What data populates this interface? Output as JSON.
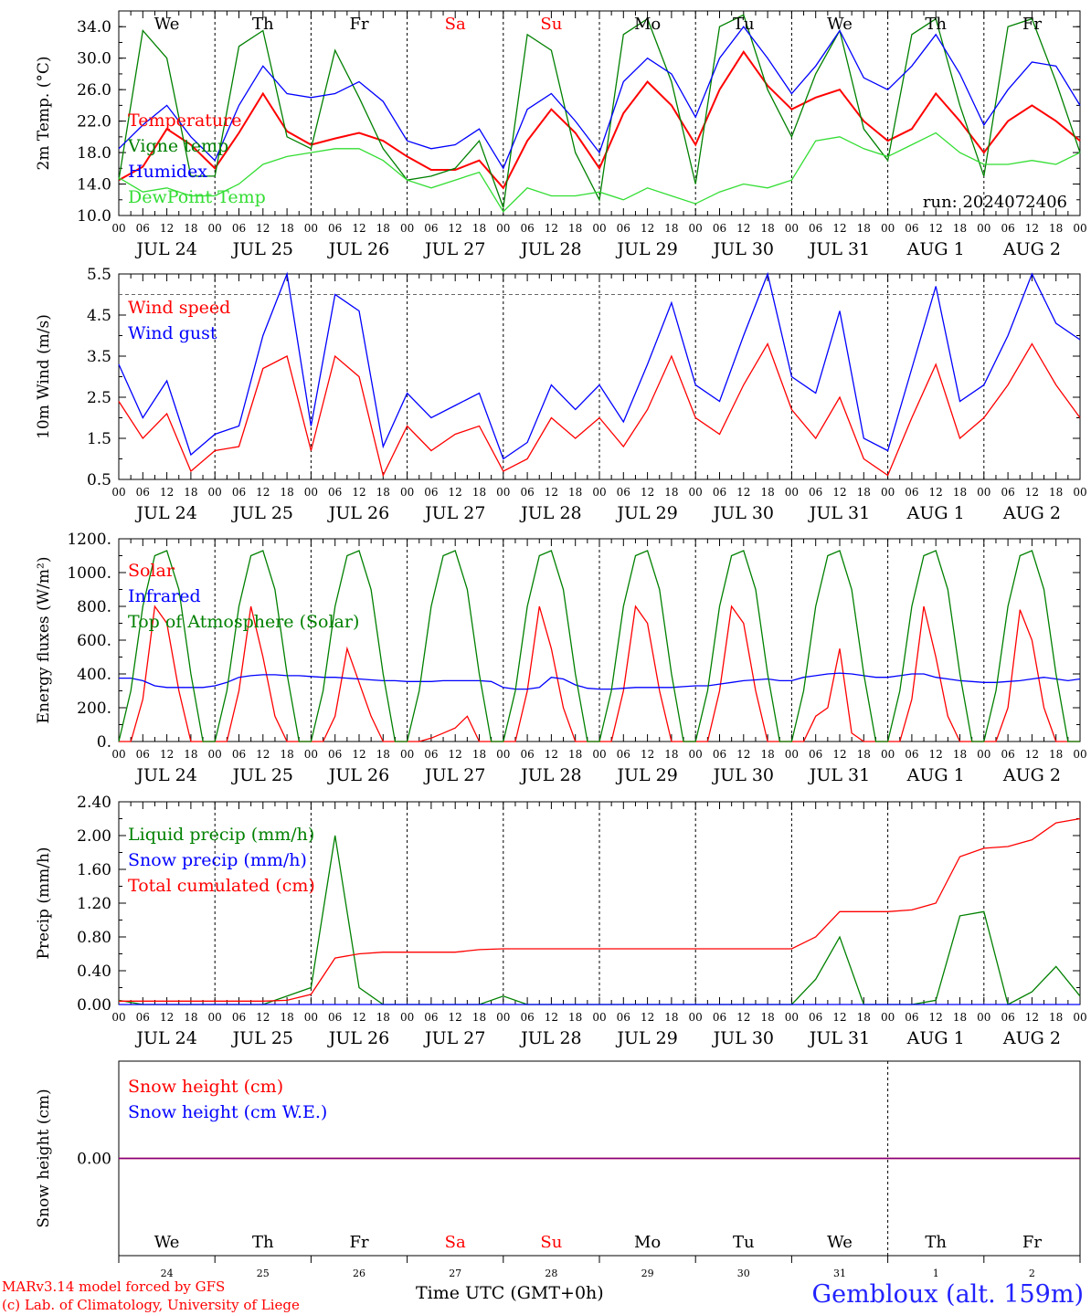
{
  "colors": {
    "red": "#ff0000",
    "green": "#008000",
    "blue": "#0000ff",
    "lightgreen": "#33dd33",
    "purple": "#800080"
  },
  "weekdays": [
    {
      "label": "We",
      "color": "#000000"
    },
    {
      "label": "Th",
      "color": "#000000"
    },
    {
      "label": "Fr",
      "color": "#000000"
    },
    {
      "label": "Sa",
      "color": "#ff0000"
    },
    {
      "label": "Su",
      "color": "#ff0000"
    },
    {
      "label": "Mo",
      "color": "#000000"
    },
    {
      "label": "Tu",
      "color": "#000000"
    },
    {
      "label": "We",
      "color": "#000000"
    },
    {
      "label": "Th",
      "color": "#000000"
    },
    {
      "label": "Fr",
      "color": "#000000"
    }
  ],
  "dates": [
    "JUL 24",
    "JUL 25",
    "JUL 26",
    "JUL 27",
    "JUL 28",
    "JUL 29",
    "JUL 30",
    "JUL 31",
    "AUG  1",
    "AUG  2"
  ],
  "day_numbers": [
    "24",
    "25",
    "26",
    "27",
    "28",
    "29",
    "30",
    "31",
    "1",
    "2"
  ],
  "hour_labels": [
    "00",
    "06",
    "12",
    "18"
  ],
  "end_hour_label": "00",
  "footer": {
    "model": "MARv3.14 model forced by GFS",
    "lab": "(c) Lab. of Climatology, University of Liege",
    "time_label": "Time UTC (GMT+0h)",
    "location": "Gembloux (alt. 159m)"
  },
  "chart_data": [
    {
      "type": "line",
      "ylabel": "2m Temp. (°C)",
      "ylim": [
        10,
        36
      ],
      "yticks": [
        10.0,
        14.0,
        18.0,
        22.0,
        26.0,
        30.0,
        34.0
      ],
      "tick_labels": [
        "10.0",
        "14.0",
        "18.0",
        "22.0",
        "26.0",
        "30.0",
        "34.0"
      ],
      "annotation": "run: 2024072406",
      "x_hours": [
        0,
        6,
        12,
        18,
        24,
        30,
        36,
        42,
        48,
        54,
        60,
        66,
        72,
        78,
        84,
        90,
        96,
        102,
        108,
        114,
        120,
        126,
        132,
        138,
        144,
        150,
        156,
        162,
        168,
        174,
        180,
        186,
        192,
        198,
        204,
        210,
        216,
        222,
        228,
        234,
        240
      ],
      "series": [
        {
          "name": "Temperature",
          "color": "#ff0000",
          "values": [
            14.5,
            16.2,
            21,
            19,
            16,
            20.5,
            25.5,
            20.7,
            19,
            19.8,
            20.5,
            19.5,
            17.5,
            15.8,
            15.8,
            17,
            13.5,
            19.5,
            23.5,
            20.5,
            16,
            23,
            27,
            24,
            19,
            26,
            30.8,
            26.5,
            23.5,
            25,
            26,
            22,
            19.5,
            21,
            25.5,
            22,
            18,
            22,
            24,
            22,
            19.5
          ]
        },
        {
          "name": "Vigne temp",
          "color": "#008000",
          "values": [
            14.5,
            33.5,
            30,
            15,
            15,
            31.5,
            33.5,
            20,
            18.5,
            31,
            25,
            18.5,
            14.5,
            15,
            16,
            19.5,
            11,
            33,
            31,
            18,
            12,
            33,
            35,
            27,
            14,
            34,
            35.5,
            26,
            20,
            28,
            33.5,
            21,
            17,
            33,
            35,
            24,
            15,
            34,
            35,
            27,
            18
          ]
        },
        {
          "name": "Humidex",
          "color": "#0000ff",
          "values": [
            18.5,
            21.5,
            24,
            20,
            17,
            24,
            29,
            25.5,
            25,
            25.5,
            27,
            24.5,
            19.5,
            18.5,
            19,
            21,
            16,
            23.5,
            25.5,
            22,
            18,
            27,
            30,
            28,
            22.5,
            30,
            34,
            30,
            25.5,
            29,
            33.5,
            27.5,
            26,
            29,
            33,
            28,
            21.5,
            26,
            29.5,
            29,
            24
          ]
        },
        {
          "name": "DewPoint Temp",
          "color": "#33dd33",
          "values": [
            14.8,
            13,
            13.5,
            12.5,
            12.5,
            14,
            16.5,
            17.5,
            18,
            18.5,
            18.5,
            17,
            14.5,
            13.5,
            14.5,
            15.5,
            10.5,
            13.5,
            12.5,
            12.5,
            13,
            12,
            13.5,
            12.5,
            11.5,
            13,
            14,
            13.5,
            14.5,
            19.5,
            20,
            18.5,
            17.5,
            19,
            20.5,
            18,
            16.5,
            16.5,
            17,
            16.5,
            18
          ]
        }
      ]
    },
    {
      "type": "line",
      "ylabel": "10m Wind (m/s)",
      "ylim": [
        0.5,
        5.5
      ],
      "yticks": [
        0.5,
        1.5,
        2.5,
        3.5,
        4.5,
        5.5
      ],
      "tick_labels": [
        "0.5",
        "1.5",
        "2.5",
        "3.5",
        "4.5",
        "5.5"
      ],
      "ref_line": 5.0,
      "x_hours": [
        0,
        6,
        12,
        18,
        24,
        30,
        36,
        42,
        48,
        54,
        60,
        66,
        72,
        78,
        84,
        90,
        96,
        102,
        108,
        114,
        120,
        126,
        132,
        138,
        144,
        150,
        156,
        162,
        168,
        174,
        180,
        186,
        192,
        198,
        204,
        210,
        216,
        222,
        228,
        234,
        240
      ],
      "series": [
        {
          "name": "Wind speed",
          "color": "#ff0000",
          "values": [
            2.4,
            1.5,
            2.1,
            0.7,
            1.2,
            1.3,
            3.2,
            3.5,
            1.2,
            3.5,
            3,
            0.6,
            1.8,
            1.2,
            1.6,
            1.8,
            0.7,
            1,
            2,
            1.5,
            2,
            1.3,
            2.2,
            3.5,
            2,
            1.6,
            2.8,
            3.8,
            2.2,
            1.5,
            2.5,
            1,
            0.6,
            2,
            3.3,
            1.5,
            2,
            2.8,
            3.8,
            2.8,
            2
          ]
        },
        {
          "name": "Wind gust",
          "color": "#0000ff",
          "values": [
            3.3,
            2,
            2.9,
            1.1,
            1.6,
            1.8,
            4,
            5.5,
            1.8,
            5,
            4.6,
            1.3,
            2.6,
            2,
            2.3,
            2.6,
            1,
            1.4,
            2.8,
            2.2,
            2.8,
            1.9,
            3.3,
            4.8,
            2.8,
            2.4,
            4,
            5.5,
            3,
            2.6,
            4.6,
            1.5,
            1.2,
            3.2,
            5.2,
            2.4,
            2.8,
            4,
            5.5,
            4.3,
            3.9
          ]
        }
      ]
    },
    {
      "type": "line",
      "ylabel": "Energy fluxes (W/m²)",
      "ylim": [
        0,
        1200
      ],
      "yticks": [
        0,
        200,
        400,
        600,
        800,
        1000,
        1200
      ],
      "tick_labels": [
        "0.",
        "200.",
        "400.",
        "600.",
        "800.",
        "1000.",
        "1200."
      ],
      "x_hours": [
        0,
        3,
        6,
        9,
        12,
        15,
        18,
        21,
        24,
        27,
        30,
        33,
        36,
        39,
        42,
        45,
        48,
        51,
        54,
        57,
        60,
        63,
        66,
        69,
        72,
        75,
        78,
        81,
        84,
        87,
        90,
        93,
        96,
        99,
        102,
        105,
        108,
        111,
        114,
        117,
        120,
        123,
        126,
        129,
        132,
        135,
        138,
        141,
        144,
        147,
        150,
        153,
        156,
        159,
        162,
        165,
        168,
        171,
        174,
        177,
        180,
        183,
        186,
        189,
        192,
        195,
        198,
        201,
        204,
        207,
        210,
        213,
        216,
        219,
        222,
        225,
        228,
        231,
        234,
        237,
        240
      ],
      "series": [
        {
          "name": "Solar",
          "color": "#ff0000",
          "values": [
            0,
            0,
            250,
            800,
            700,
            300,
            0,
            0,
            0,
            0,
            300,
            800,
            500,
            150,
            0,
            0,
            0,
            0,
            150,
            550,
            350,
            150,
            0,
            0,
            0,
            0,
            20,
            50,
            80,
            150,
            0,
            0,
            0,
            0,
            300,
            800,
            550,
            200,
            0,
            0,
            0,
            0,
            300,
            800,
            700,
            300,
            0,
            0,
            0,
            0,
            300,
            800,
            700,
            300,
            0,
            0,
            0,
            0,
            150,
            200,
            550,
            50,
            0,
            0,
            0,
            0,
            250,
            800,
            500,
            150,
            0,
            0,
            0,
            0,
            200,
            780,
            600,
            200,
            0,
            0,
            0
          ]
        },
        {
          "name": "Infrared",
          "color": "#0000ff",
          "values": [
            375,
            375,
            360,
            330,
            320,
            320,
            320,
            320,
            330,
            350,
            380,
            390,
            395,
            395,
            390,
            390,
            385,
            380,
            380,
            375,
            370,
            365,
            360,
            360,
            355,
            355,
            355,
            360,
            360,
            360,
            360,
            355,
            320,
            310,
            310,
            320,
            380,
            370,
            335,
            315,
            310,
            310,
            315,
            320,
            320,
            320,
            320,
            325,
            330,
            330,
            340,
            350,
            360,
            365,
            370,
            360,
            360,
            380,
            390,
            400,
            405,
            400,
            390,
            380,
            380,
            390,
            400,
            400,
            380,
            370,
            360,
            355,
            350,
            350,
            355,
            360,
            370,
            380,
            370,
            360,
            370
          ]
        },
        {
          "name": "Top of Atmosphere (Solar)",
          "color": "#008000",
          "values": [
            0,
            300,
            800,
            1100,
            1130,
            900,
            400,
            0,
            0,
            300,
            800,
            1100,
            1130,
            900,
            400,
            0,
            0,
            300,
            800,
            1100,
            1130,
            900,
            400,
            0,
            0,
            300,
            800,
            1100,
            1130,
            900,
            400,
            0,
            0,
            300,
            800,
            1100,
            1130,
            900,
            400,
            0,
            0,
            300,
            800,
            1100,
            1130,
            900,
            400,
            0,
            0,
            300,
            800,
            1100,
            1130,
            900,
            400,
            0,
            0,
            300,
            800,
            1100,
            1130,
            900,
            400,
            0,
            0,
            300,
            800,
            1100,
            1130,
            900,
            400,
            0,
            0,
            300,
            800,
            1100,
            1130,
            900,
            400,
            0,
            0
          ]
        }
      ]
    },
    {
      "type": "line",
      "ylabel": "Precip (mm/h)",
      "ylim": [
        0,
        2.4
      ],
      "yticks": [
        0,
        0.4,
        0.8,
        1.2,
        1.6,
        2.0,
        2.4
      ],
      "tick_labels": [
        "0.00",
        "0.40",
        "0.80",
        "1.20",
        "1.60",
        "2.00",
        "2.40"
      ],
      "x_hours": [
        0,
        6,
        12,
        18,
        24,
        30,
        36,
        42,
        48,
        54,
        60,
        66,
        72,
        78,
        84,
        90,
        96,
        102,
        108,
        114,
        120,
        126,
        132,
        138,
        144,
        150,
        156,
        162,
        168,
        174,
        180,
        186,
        192,
        198,
        204,
        210,
        216,
        222,
        228,
        234,
        240
      ],
      "series": [
        {
          "name": "Liquid precip (mm/h)",
          "color": "#008000",
          "values": [
            0.05,
            0,
            0,
            0,
            0,
            0,
            0,
            0.1,
            0.2,
            2,
            0.2,
            0,
            0,
            0,
            0,
            0,
            0.1,
            0,
            0,
            0,
            0,
            0,
            0,
            0,
            0,
            0,
            0,
            0,
            0,
            0.3,
            0.8,
            0,
            0,
            0,
            0.05,
            1.05,
            1.1,
            0,
            0.15,
            0.45,
            0.1
          ]
        },
        {
          "name": "Snow precip (mm/h)",
          "color": "#0000ff",
          "values": [
            0,
            0,
            0,
            0,
            0,
            0,
            0,
            0,
            0,
            0,
            0,
            0,
            0,
            0,
            0,
            0,
            0,
            0,
            0,
            0,
            0,
            0,
            0,
            0,
            0,
            0,
            0,
            0,
            0,
            0,
            0,
            0,
            0,
            0,
            0,
            0,
            0,
            0,
            0,
            0,
            0
          ]
        },
        {
          "name": "Total cumulated (cm)",
          "color": "#ff0000",
          "values": [
            0.04,
            0.04,
            0.04,
            0.04,
            0.04,
            0.04,
            0.04,
            0.05,
            0.12,
            0.55,
            0.6,
            0.62,
            0.62,
            0.62,
            0.62,
            0.65,
            0.66,
            0.66,
            0.66,
            0.66,
            0.66,
            0.66,
            0.66,
            0.66,
            0.66,
            0.66,
            0.66,
            0.66,
            0.66,
            0.8,
            1.1,
            1.1,
            1.1,
            1.12,
            1.2,
            1.75,
            1.85,
            1.87,
            1.95,
            2.15,
            2.2
          ]
        }
      ]
    },
    {
      "type": "line",
      "ylabel": "Snow height (cm)",
      "yticks": [
        0
      ],
      "tick_labels": [
        "0.00"
      ],
      "x_hours": [
        0,
        240
      ],
      "series": [
        {
          "name": "Snow height (cm)",
          "color": "#ff0000",
          "values": [
            0,
            0
          ]
        },
        {
          "name": "Snow height (cm W.E.)",
          "color": "#0000ff",
          "values": [
            0,
            0
          ]
        }
      ]
    }
  ]
}
